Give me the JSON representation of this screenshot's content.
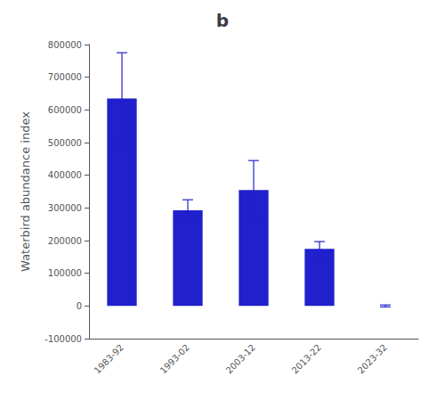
{
  "chart_data": {
    "type": "bar",
    "title": "b",
    "ylabel": "Waterbird abundance index",
    "categories": [
      "1983-92",
      "1993-02",
      "2003-12",
      "2013-22",
      "2023-32"
    ],
    "values": [
      635000,
      293000,
      355000,
      175000,
      0
    ],
    "errors": [
      140000,
      32000,
      90000,
      22000,
      3000
    ],
    "color": "#2020CC",
    "ylim": [
      -100000,
      800000
    ],
    "yticks": [
      -100000,
      0,
      100000,
      200000,
      300000,
      400000,
      500000,
      600000,
      700000,
      800000
    ],
    "grid": false
  }
}
